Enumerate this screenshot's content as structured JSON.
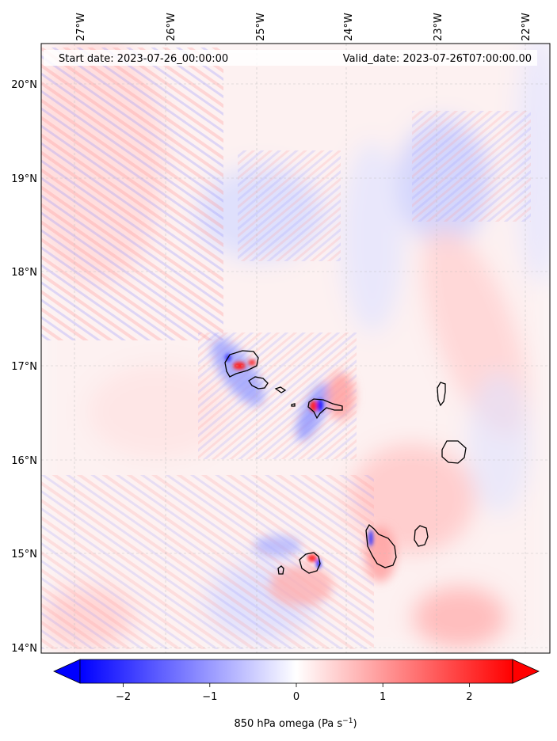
{
  "map": {
    "header": {
      "start_label": "Start date: 2023-07-26_00:00:00",
      "valid_label": "Valid_date: 2023-07-26T07:00:00.00"
    },
    "lon_labels": [
      "27°W",
      "26°W",
      "25°W",
      "24°W",
      "23°W",
      "22°W"
    ],
    "lat_labels": [
      "20°N",
      "19°N",
      "18°N",
      "17°N",
      "16°N",
      "15°N",
      "14°N"
    ],
    "colorbar": {
      "ticks": [
        "−2",
        "−1",
        "0",
        "1",
        "2"
      ],
      "tick_values": [
        -2,
        -1,
        0,
        1,
        2
      ],
      "range": [
        -2.5,
        2.5
      ],
      "label_main": "850 hPa omega (Pa s",
      "label_sup": "−1",
      "label_end": ")",
      "colormap": "bwr",
      "extend": "both"
    },
    "colors": {
      "negative": "#0000ff",
      "neutral": "#ffffff",
      "positive": "#ff0000",
      "coast": "#000000",
      "grid": "#bbbbbb"
    }
  }
}
